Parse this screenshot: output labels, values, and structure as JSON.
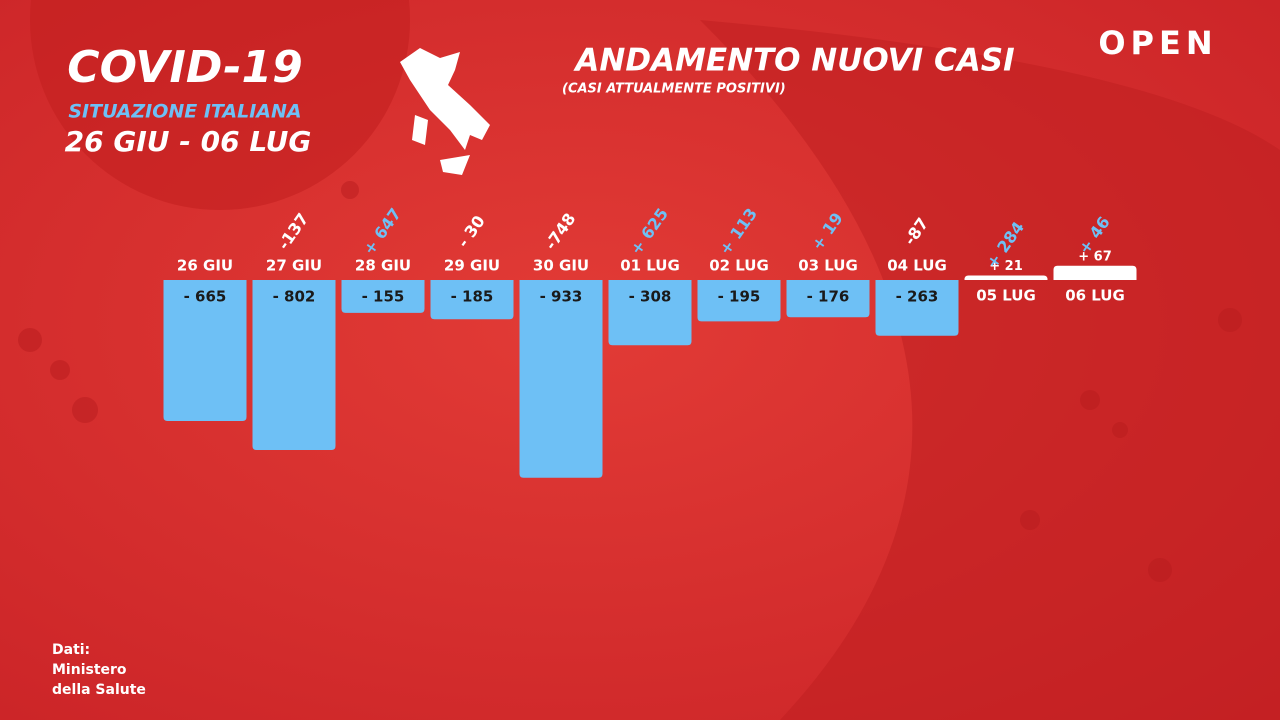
{
  "chart_data": {
    "type": "bar",
    "title": "ANDAMENTO NUOVI CASI",
    "subtitle": "(CASI ATTUALMENTE POSITIVI)",
    "header": {
      "main": "COVID-19",
      "sub": "SITUAZIONE ITALIANA",
      "period": "26 GIU - 06 LUG"
    },
    "brand": "OPEN",
    "source": [
      "Dati:",
      "Ministero",
      "della Salute"
    ],
    "categories": [
      "26 GIU",
      "27 GIU",
      "28 GIU",
      "29 GIU",
      "30 GIU",
      "01 LUG",
      "02 LUG",
      "03 LUG",
      "04 LUG",
      "05 LUG",
      "06 LUG"
    ],
    "values": [
      -665,
      -802,
      -155,
      -185,
      -933,
      -308,
      -195,
      -176,
      -263,
      21,
      67
    ],
    "value_labels": [
      "- 665",
      "- 802",
      "- 155",
      "- 185",
      "- 933",
      "- 308",
      "- 195",
      "- 176",
      "- 263",
      "+ 21",
      "+ 67"
    ],
    "changes": [
      null,
      -137,
      647,
      -30,
      -748,
      625,
      113,
      19,
      -87,
      284,
      46
    ],
    "change_labels": [
      null,
      "-137",
      "+ 647",
      "- 30",
      "-748",
      "+ 625",
      "+ 113",
      "+ 19",
      "-87",
      "+ 284",
      "+ 46"
    ],
    "negative_color": "#6ec0f5",
    "positive_color": "#ffffff"
  }
}
